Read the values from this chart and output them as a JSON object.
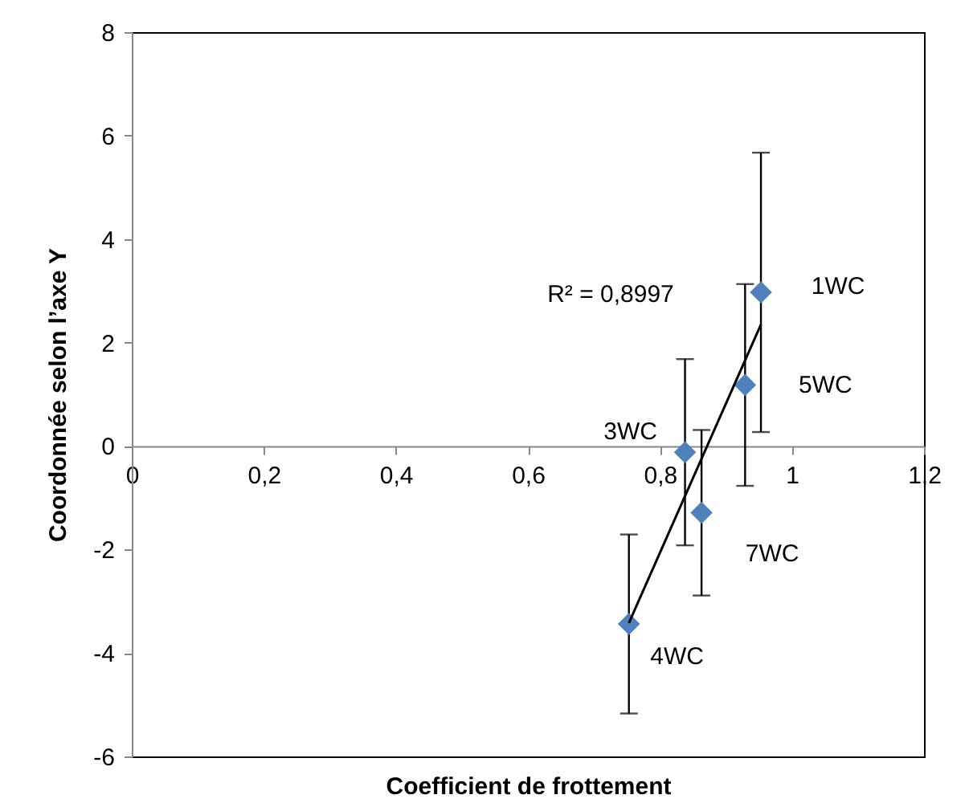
{
  "chart_data": {
    "type": "scatter",
    "xlabel": "Coefficient de frottement",
    "ylabel": "Coordonnée selon  l’axe Y",
    "xlim": [
      0,
      1.2
    ],
    "ylim": [
      -6,
      8
    ],
    "xticks": [
      0,
      {
        "value": 0.2,
        "label": "0,2"
      },
      {
        "value": 0.4,
        "label": "0,4"
      },
      {
        "value": 0.6,
        "label": "0,6"
      },
      {
        "value": 0.8,
        "label": "0,8"
      },
      1,
      {
        "value": 1.2,
        "label": "1,2"
      }
    ],
    "yticks": [
      -6,
      -4,
      -2,
      0,
      2,
      4,
      6,
      8
    ],
    "grid": false,
    "series": [
      {
        "marker": "diamond",
        "color": "#4f81bd",
        "x": [
          0.953,
          0.929,
          0.838,
          0.863,
          0.753
        ],
        "values": [
          2.97,
          1.18,
          -0.12,
          -1.29,
          -3.44
        ],
        "errors": [
          2.7,
          1.95,
          1.8,
          1.6,
          1.73
        ]
      },
      {
        "type": "line",
        "color": "#000000",
        "x": [
          0.753,
          0.953
        ],
        "values": [
          -3.42,
          2.35
        ]
      }
    ],
    "annotations": [
      {
        "text": "1WC",
        "x": 0.953,
        "y": 2.97
      },
      {
        "text": "5WC",
        "x": 0.929,
        "y": 1.18
      },
      {
        "text": "3WC",
        "x": 0.838,
        "y": -0.12
      },
      {
        "text": "7WC",
        "x": 0.863,
        "y": -1.29
      },
      {
        "text": "4WC",
        "x": 0.753,
        "y": -3.44
      },
      "R² = 0,8997"
    ]
  }
}
